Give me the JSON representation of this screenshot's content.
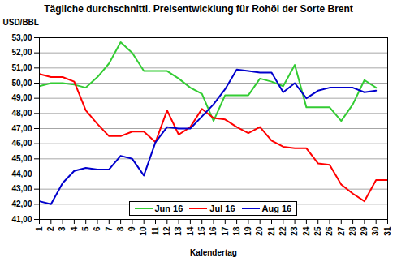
{
  "chart_data": {
    "type": "line",
    "title": "Tägliche durchschnittl. Preisentwicklung für Rohöl der Sorte Brent",
    "x_label": "Kalendertag",
    "y_label": "USD/BBL",
    "x": [
      1,
      2,
      3,
      4,
      5,
      6,
      7,
      8,
      9,
      10,
      11,
      12,
      13,
      14,
      15,
      16,
      17,
      18,
      19,
      20,
      21,
      22,
      23,
      24,
      25,
      26,
      27,
      28,
      29,
      30,
      31
    ],
    "series": [
      {
        "name": "Jun 16",
        "color": "#33cc33",
        "values": [
          49.8,
          50.0,
          50.0,
          49.9,
          49.7,
          50.4,
          51.3,
          52.7,
          52.0,
          50.8,
          50.8,
          50.8,
          50.3,
          49.7,
          49.3,
          47.5,
          49.2,
          49.2,
          49.2,
          50.3,
          50.1,
          49.8,
          51.2,
          48.4,
          48.4,
          48.4,
          47.5,
          48.6,
          50.2,
          49.7,
          null
        ]
      },
      {
        "name": "Jul 16",
        "color": "#ff0000",
        "values": [
          50.6,
          50.4,
          50.4,
          50.1,
          48.2,
          47.3,
          46.5,
          46.5,
          46.8,
          46.8,
          46.1,
          48.2,
          46.6,
          47.1,
          48.3,
          47.7,
          47.6,
          47.1,
          46.7,
          47.1,
          46.2,
          45.8,
          45.7,
          45.7,
          44.7,
          44.6,
          43.3,
          42.7,
          42.2,
          43.6,
          43.6
        ]
      },
      {
        "name": "Aug 16",
        "color": "#0000cc",
        "values": [
          42.2,
          42.0,
          43.4,
          44.2,
          44.4,
          44.3,
          44.3,
          45.2,
          45.0,
          43.9,
          46.1,
          47.1,
          47.0,
          47.0,
          47.8,
          48.6,
          49.6,
          50.9,
          50.8,
          50.7,
          50.7,
          49.4,
          50.0,
          49.0,
          49.5,
          49.7,
          49.7,
          49.7,
          49.4,
          49.5,
          null
        ]
      }
    ],
    "xlim": [
      1,
      31
    ],
    "xticks": [
      1,
      2,
      3,
      4,
      5,
      6,
      7,
      8,
      9,
      10,
      11,
      12,
      13,
      14,
      15,
      16,
      17,
      18,
      19,
      20,
      21,
      22,
      23,
      24,
      25,
      26,
      27,
      28,
      29,
      30,
      31
    ],
    "ylim": [
      41,
      53
    ],
    "yticks": [
      {
        "value": 41,
        "label": "41,00"
      },
      {
        "value": 42,
        "label": "42,00"
      },
      {
        "value": 43,
        "label": "43,00"
      },
      {
        "value": 44,
        "label": "44,00"
      },
      {
        "value": 45,
        "label": "45,00"
      },
      {
        "value": 46,
        "label": "46,00"
      },
      {
        "value": 47,
        "label": "47,00"
      },
      {
        "value": 48,
        "label": "48,00"
      },
      {
        "value": 49,
        "label": "49,00"
      },
      {
        "value": 50,
        "label": "50,00"
      },
      {
        "value": 51,
        "label": "51,00"
      },
      {
        "value": 52,
        "label": "52,00"
      },
      {
        "value": 53,
        "label": "53,00"
      }
    ],
    "grid": true,
    "legend": "bottom"
  }
}
